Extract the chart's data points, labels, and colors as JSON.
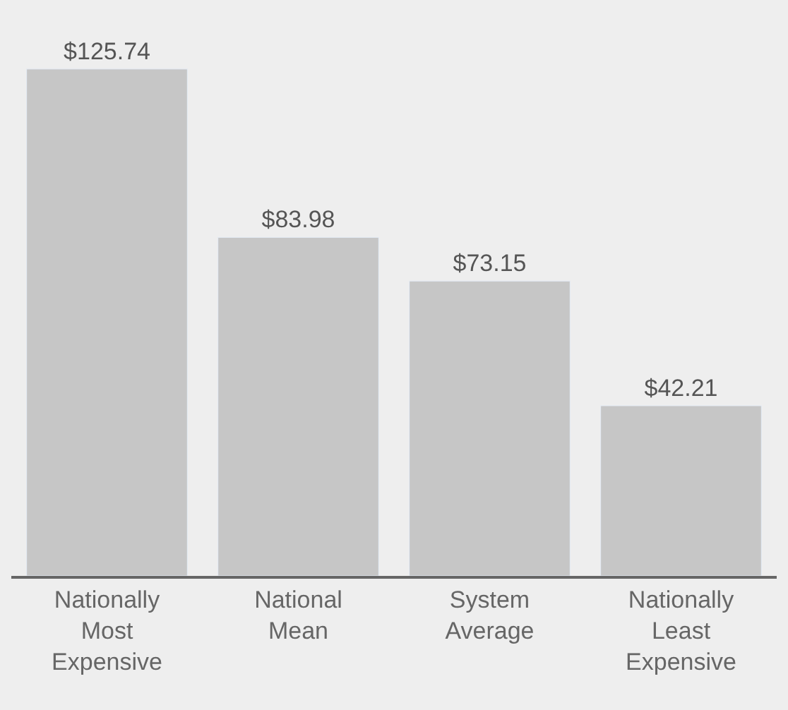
{
  "chart_data": {
    "type": "bar",
    "categories": [
      "Nationally\nMost\nExpensive",
      "National\nMean",
      "System\nAverage",
      "Nationally\nLeast\nExpensive"
    ],
    "values": [
      125.74,
      83.98,
      73.15,
      42.21
    ],
    "value_labels": [
      "$125.74",
      "$83.98",
      "$73.15",
      "$42.21"
    ],
    "color": "#c6c6c6",
    "grid": false
  }
}
